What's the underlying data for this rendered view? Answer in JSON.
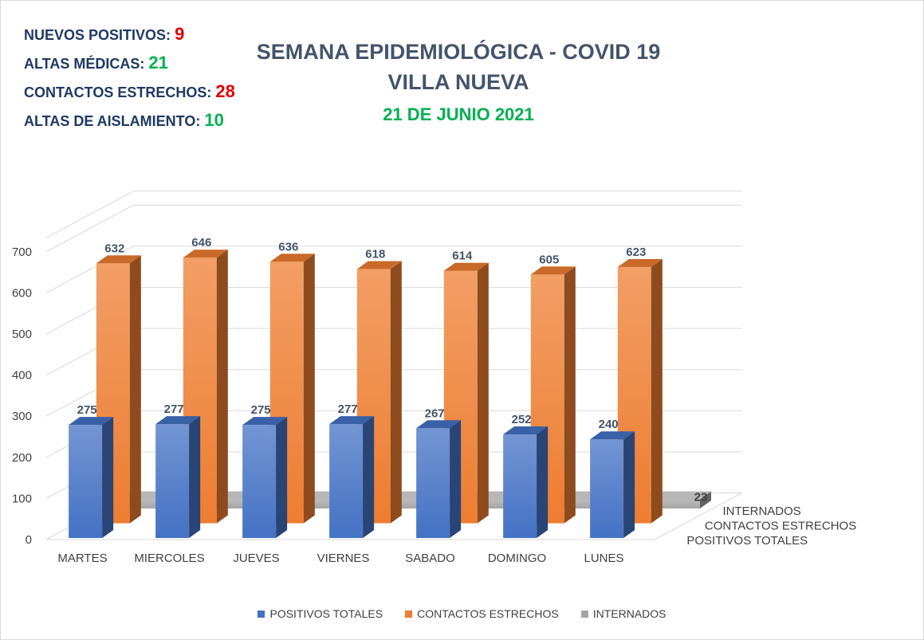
{
  "stats": [
    {
      "label": "NUEVOS POSITIVOS:",
      "value": "9",
      "value_color": "#e00000"
    },
    {
      "label": "ALTAS MÉDICAS:",
      "value": "21",
      "value_color": "#00b050"
    },
    {
      "label": "CONTACTOS ESTRECHOS:",
      "value": "28",
      "value_color": "#e00000"
    },
    {
      "label": "ALTAS DE AISLAMIENTO:",
      "value": "10",
      "value_color": "#00b050"
    }
  ],
  "header": {
    "title_line1": "SEMANA EPIDEMIOLÓGICA - COVID 19",
    "title_line2": "VILLA NUEVA",
    "date": "21 DE JUNIO 2021",
    "date_color": "#00b050"
  },
  "chart_data": {
    "type": "bar",
    "variant": "3d-clustered-depth",
    "categories": [
      "MARTES",
      "MIERCOLES",
      "JUEVES",
      "VIERNES",
      "SABADO",
      "DOMINGO",
      "LUNES"
    ],
    "series": [
      {
        "name": "POSITIVOS TOTALES",
        "color": "#4472c4",
        "values": [
          275,
          277,
          275,
          277,
          267,
          252,
          240
        ]
      },
      {
        "name": "CONTACTOS ESTRECHOS",
        "color": "#ed7d31",
        "values": [
          632,
          646,
          636,
          618,
          614,
          605,
          623
        ]
      },
      {
        "name": "INTERNADOS",
        "color": "#a5a5a5",
        "values": [
          17,
          18,
          21,
          22,
          23,
          24,
          23
        ]
      }
    ],
    "ylim": [
      0,
      700
    ],
    "yticks": [
      0,
      100,
      200,
      300,
      400,
      500,
      600,
      700
    ],
    "grid": true,
    "legend_position": "bottom"
  }
}
